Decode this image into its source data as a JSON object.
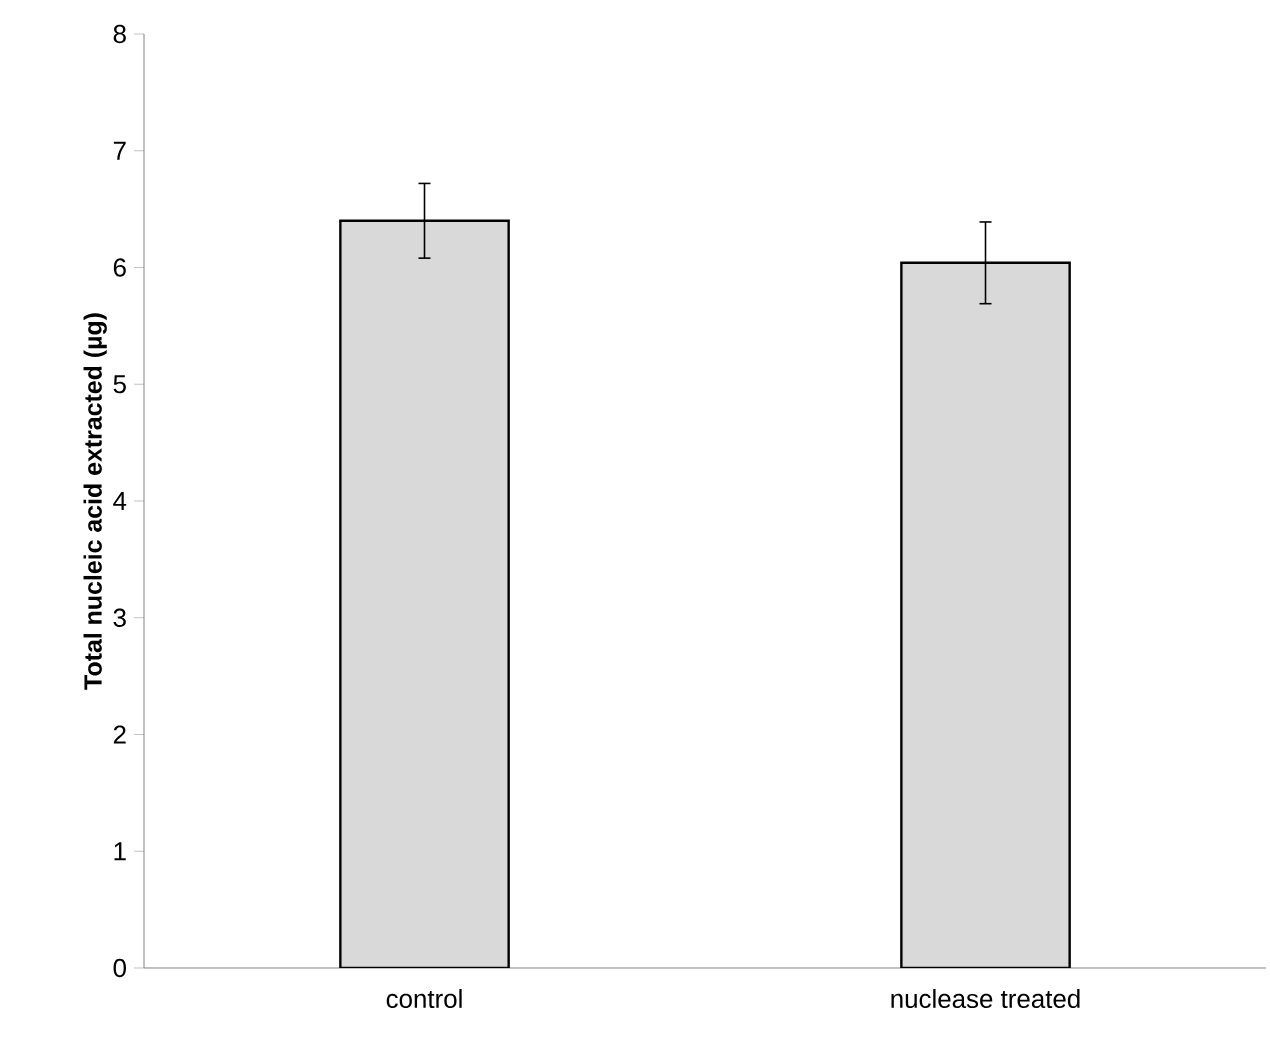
{
  "chart_data": {
    "type": "bar",
    "ylabel": "Total nucleic acid extracted (µg)",
    "categories": [
      "control",
      "nuclease treated"
    ],
    "values": [
      6.4,
      6.04
    ],
    "errors": [
      0.32,
      0.35
    ],
    "color": "#d9d9d9",
    "ylim": [
      0,
      8
    ],
    "yticks": [
      0,
      1,
      2,
      3,
      4,
      5,
      6,
      7,
      8
    ],
    "grid": false
  }
}
